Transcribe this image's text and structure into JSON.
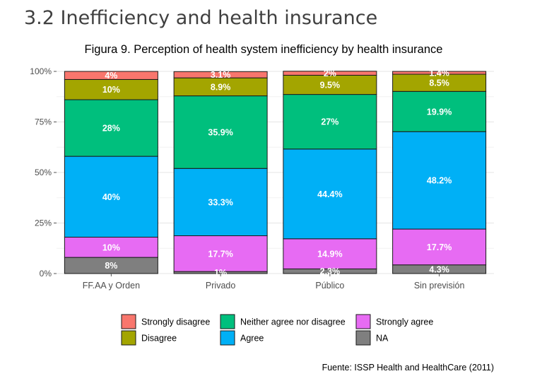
{
  "page": {
    "section_title": "3.2 Inefficiency and health insurance",
    "source": "Fuente: ISSP Health and HealthCare (2011)"
  },
  "chart_data": {
    "type": "bar",
    "stacked": true,
    "title": "Figura 9. Perception of health system inefficiency by health insurance",
    "xlabel": "",
    "ylabel": "",
    "ylim": [
      0,
      100
    ],
    "y_ticks": [
      "0%",
      "25%",
      "50%",
      "75%",
      "100%"
    ],
    "grid": true,
    "legend_position": "bottom",
    "categories": [
      "FF.AA y Orden",
      "Privado",
      "Público",
      "Sin previsión"
    ],
    "series": [
      {
        "name": "NA",
        "color": "#7f7f7f",
        "values": [
          8,
          1,
          2.3,
          4.3
        ],
        "labels": [
          "8%",
          "1%",
          "2.3%",
          "4.3%"
        ]
      },
      {
        "name": "Strongly agree",
        "color": "#e76bf3",
        "values": [
          10,
          17.7,
          14.9,
          17.7
        ],
        "labels": [
          "10%",
          "17.7%",
          "14.9%",
          "17.7%"
        ]
      },
      {
        "name": "Agree",
        "color": "#00b0f6",
        "values": [
          40,
          33.3,
          44.4,
          48.2
        ],
        "labels": [
          "40%",
          "33.3%",
          "44.4%",
          "48.2%"
        ]
      },
      {
        "name": "Neither agree nor disagree",
        "color": "#00bf7d",
        "values": [
          28,
          35.9,
          27,
          19.9
        ],
        "labels": [
          "28%",
          "35.9%",
          "27%",
          "19.9%"
        ]
      },
      {
        "name": "Disagree",
        "color": "#a3a500",
        "values": [
          10,
          8.9,
          9.5,
          8.5
        ],
        "labels": [
          "10%",
          "8.9%",
          "9.5%",
          "8.5%"
        ]
      },
      {
        "name": "Strongly disagree",
        "color": "#f8766d",
        "values": [
          4,
          3.1,
          2,
          1.4
        ],
        "labels": [
          "4%",
          "3.1%",
          "2%",
          "1.4%"
        ]
      }
    ],
    "legend_order": [
      "Strongly disagree",
      "Neither agree nor disagree",
      "Strongly agree",
      "Disagree",
      "Agree",
      "NA"
    ]
  }
}
